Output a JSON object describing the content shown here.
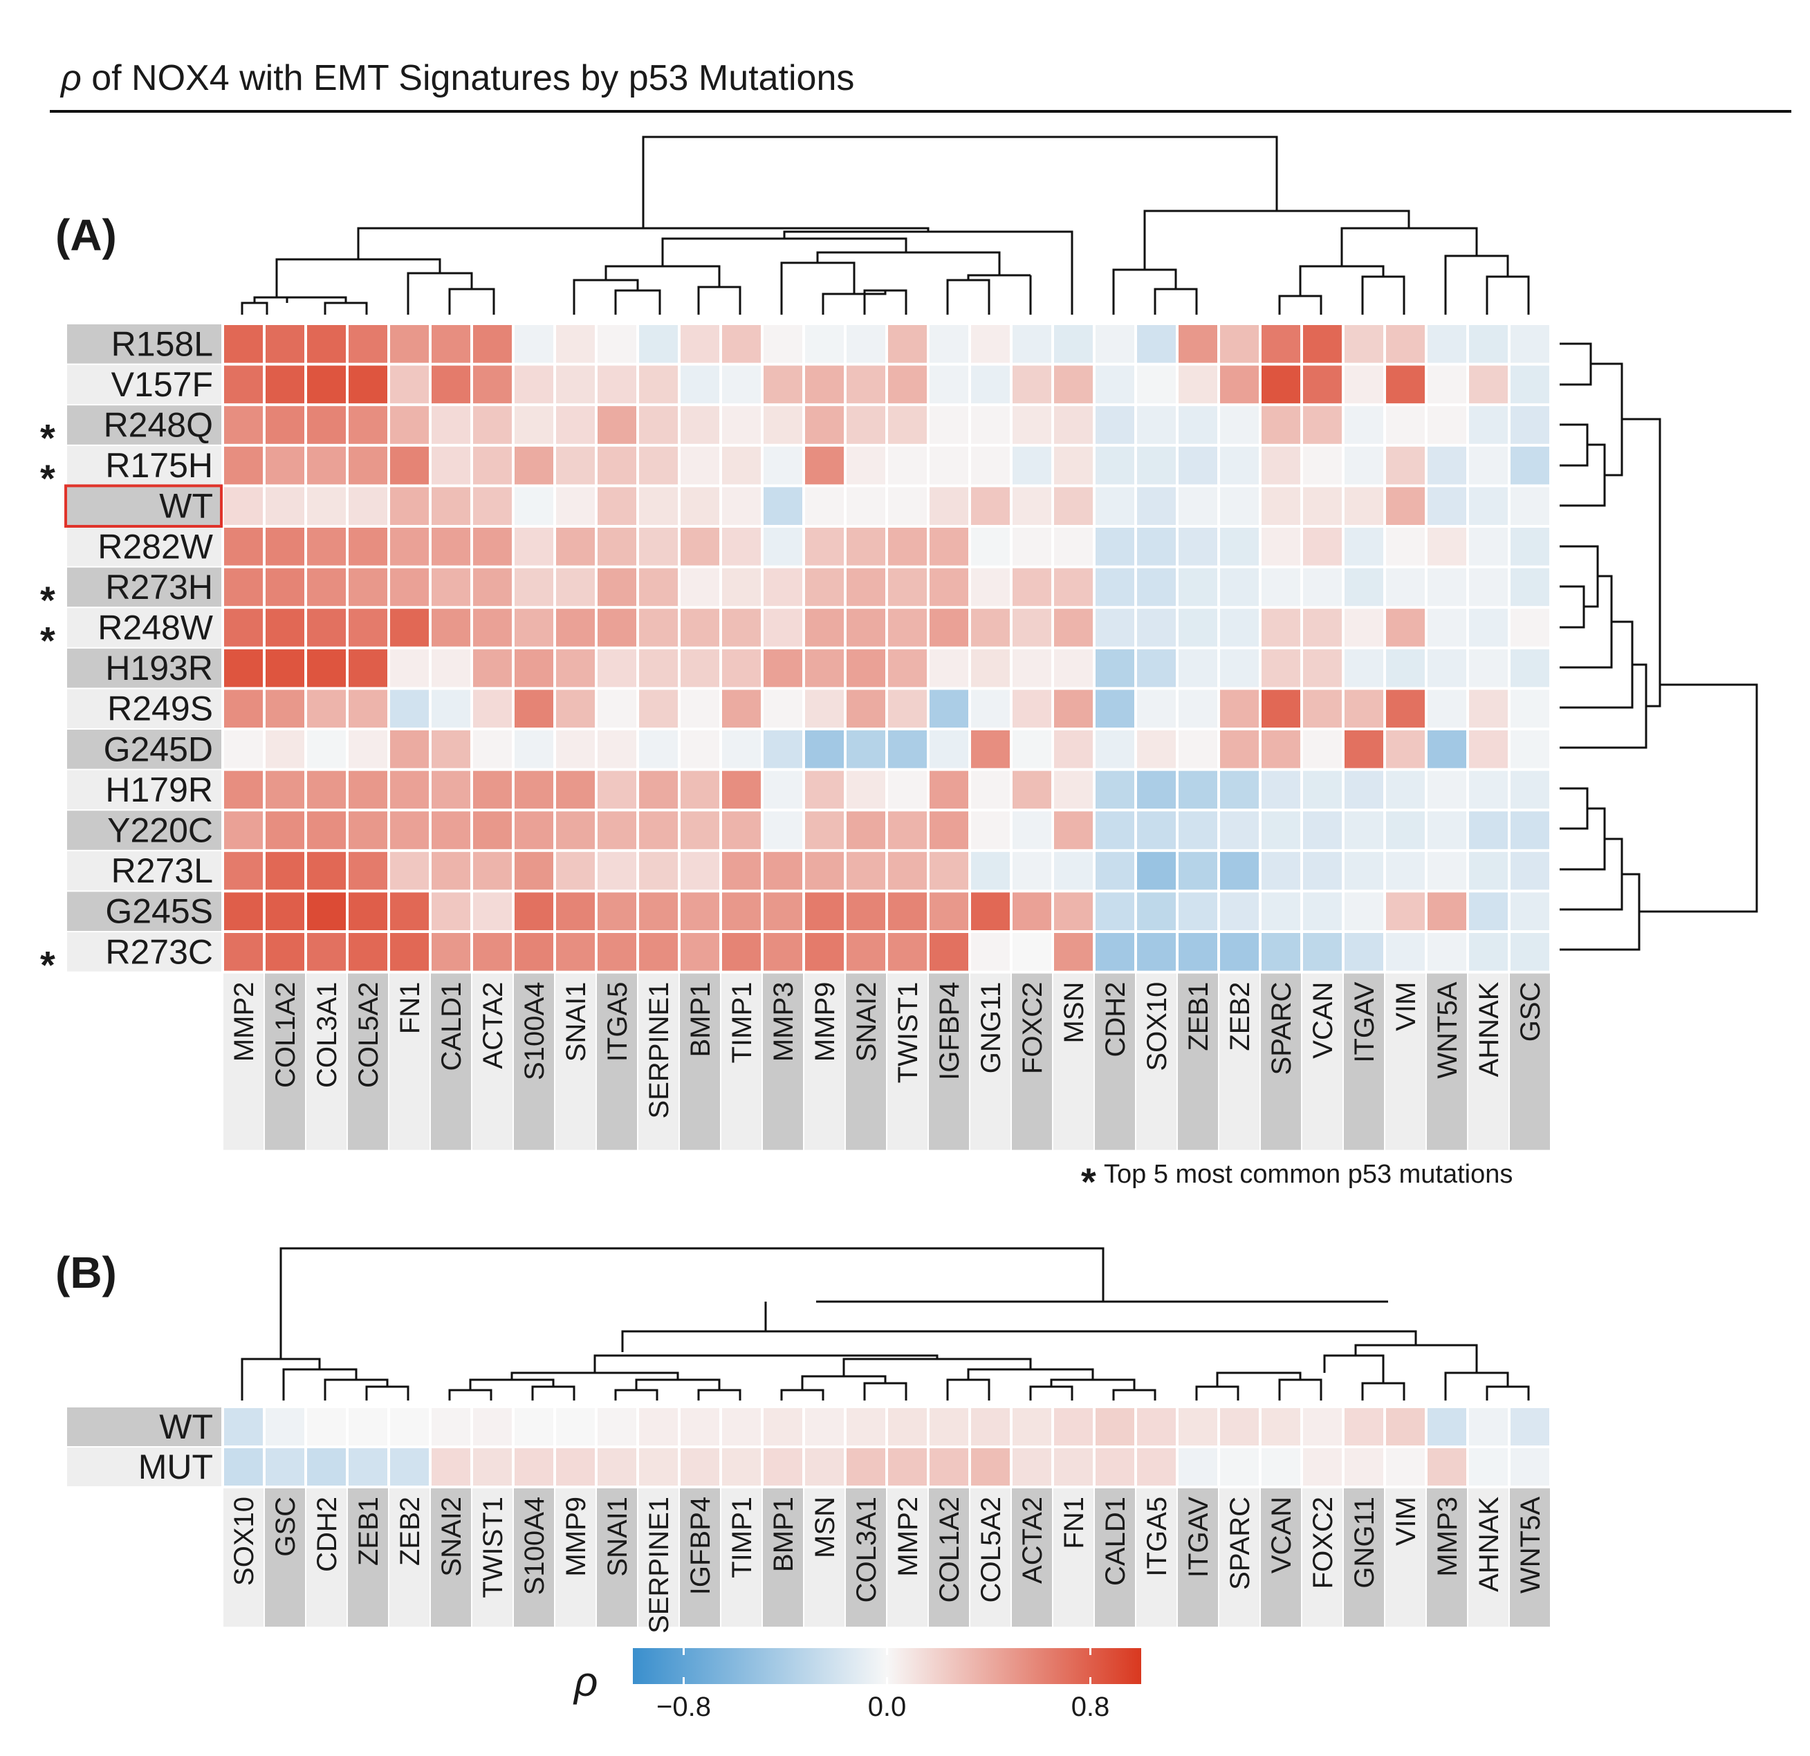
{
  "title": {
    "rho": "ρ",
    "rest": " of NOX4 with EMT Signatures by p53 Mutations"
  },
  "chart_data": [
    {
      "type": "heatmap",
      "panel": "(A)",
      "rows": [
        "R158L",
        "V157F",
        "R248Q",
        "R175H",
        "WT",
        "R282W",
        "R273H",
        "R248W",
        "H193R",
        "R249S",
        "G245D",
        "H179R",
        "Y220C",
        "R273L",
        "G245S",
        "R273C"
      ],
      "starred_rows": [
        "R248Q",
        "R175H",
        "R273H",
        "R248W",
        "R273C"
      ],
      "highlighted_row": "WT",
      "columns": [
        "MMP2",
        "COL1A2",
        "COL3A1",
        "COL5A2",
        "FN1",
        "CALD1",
        "ACTA2",
        "S100A4",
        "SNAI1",
        "ITGA5",
        "SERPINE1",
        "BMP1",
        "TIMP1",
        "MMP3",
        "MMP9",
        "SNAI2",
        "TWIST1",
        "IGFBP4",
        "GNG11",
        "FOXC2",
        "MSN",
        "CDH2",
        "SOX10",
        "ZEB1",
        "ZEB2",
        "SPARC",
        "VCAN",
        "ITGAV",
        "VIM",
        "WNT5A",
        "AHNAK",
        "GSC"
      ],
      "values": [
        [
          0.75,
          0.72,
          0.75,
          0.65,
          0.5,
          0.55,
          0.6,
          -0.05,
          0.08,
          0.02,
          -0.12,
          0.15,
          0.25,
          0.02,
          -0.03,
          -0.05,
          0.3,
          -0.05,
          0.05,
          -0.08,
          -0.12,
          -0.05,
          -0.2,
          0.5,
          0.3,
          0.65,
          0.75,
          0.2,
          0.25,
          -0.1,
          -0.12,
          -0.08
        ],
        [
          0.7,
          0.8,
          0.85,
          0.85,
          0.25,
          0.65,
          0.55,
          0.15,
          0.12,
          0.15,
          0.18,
          -0.08,
          -0.05,
          0.3,
          0.35,
          0.28,
          0.35,
          -0.05,
          -0.08,
          0.2,
          0.3,
          -0.08,
          -0.02,
          0.1,
          0.45,
          0.85,
          0.7,
          0.05,
          0.75,
          0.02,
          0.2,
          -0.12
        ],
        [
          0.55,
          0.6,
          0.6,
          0.55,
          0.35,
          0.15,
          0.25,
          0.1,
          0.15,
          0.4,
          0.2,
          0.12,
          0.05,
          0.1,
          0.35,
          0.2,
          0.18,
          0.02,
          0.02,
          0.08,
          0.12,
          -0.15,
          -0.08,
          -0.1,
          -0.05,
          0.3,
          0.28,
          -0.05,
          0.02,
          0.02,
          -0.1,
          -0.15
        ],
        [
          0.55,
          0.45,
          0.45,
          0.5,
          0.6,
          0.15,
          0.25,
          0.4,
          0.2,
          0.25,
          0.2,
          0.05,
          0.1,
          -0.05,
          0.55,
          0.05,
          0.02,
          0.02,
          0.02,
          -0.1,
          0.1,
          -0.12,
          -0.12,
          -0.15,
          -0.08,
          0.12,
          0.02,
          -0.05,
          0.2,
          -0.15,
          -0.05,
          -0.25
        ],
        [
          0.15,
          0.12,
          0.1,
          0.12,
          0.35,
          0.3,
          0.25,
          -0.03,
          0.05,
          0.25,
          0.1,
          0.1,
          0.05,
          -0.25,
          0.02,
          0.02,
          0.02,
          0.12,
          0.25,
          0.08,
          0.2,
          -0.08,
          -0.15,
          -0.05,
          -0.05,
          0.1,
          0.1,
          0.1,
          0.35,
          -0.15,
          -0.1,
          -0.05
        ],
        [
          0.6,
          0.6,
          0.55,
          0.55,
          0.45,
          0.45,
          0.45,
          0.15,
          0.35,
          0.3,
          0.2,
          0.3,
          0.15,
          -0.08,
          0.25,
          0.3,
          0.35,
          0.35,
          -0.02,
          0.02,
          0.02,
          -0.2,
          -0.2,
          -0.15,
          -0.12,
          0.05,
          0.15,
          -0.1,
          0.02,
          0.08,
          -0.05,
          -0.12
        ],
        [
          0.6,
          0.6,
          0.55,
          0.5,
          0.45,
          0.35,
          0.4,
          0.2,
          0.2,
          0.4,
          0.3,
          0.05,
          0.1,
          0.15,
          0.3,
          0.35,
          0.3,
          0.35,
          0.05,
          0.25,
          0.25,
          -0.2,
          -0.2,
          -0.12,
          -0.1,
          -0.05,
          -0.05,
          -0.12,
          -0.05,
          -0.05,
          -0.05,
          -0.12
        ],
        [
          0.7,
          0.75,
          0.7,
          0.65,
          0.75,
          0.5,
          0.45,
          0.35,
          0.45,
          0.45,
          0.3,
          0.3,
          0.3,
          0.15,
          0.4,
          0.4,
          0.35,
          0.45,
          0.3,
          0.2,
          0.35,
          -0.15,
          -0.15,
          -0.12,
          -0.1,
          0.2,
          0.2,
          0.05,
          0.35,
          -0.05,
          -0.08,
          0.02
        ],
        [
          0.85,
          0.85,
          0.85,
          0.8,
          0.05,
          0.05,
          0.4,
          0.45,
          0.35,
          0.15,
          0.2,
          0.2,
          0.25,
          0.45,
          0.4,
          0.45,
          0.35,
          0.05,
          0.1,
          0.05,
          0.05,
          -0.35,
          -0.25,
          -0.08,
          -0.08,
          0.2,
          0.2,
          -0.08,
          -0.12,
          -0.08,
          -0.05,
          -0.12
        ],
        [
          0.55,
          0.5,
          0.35,
          0.35,
          -0.2,
          -0.08,
          0.15,
          0.6,
          0.3,
          0.02,
          0.2,
          0.02,
          0.4,
          0.02,
          0.12,
          0.4,
          0.2,
          -0.4,
          -0.05,
          0.15,
          0.4,
          -0.4,
          -0.05,
          -0.05,
          0.35,
          0.75,
          0.3,
          0.3,
          0.7,
          -0.05,
          0.12,
          -0.03
        ],
        [
          0.02,
          0.08,
          -0.02,
          0.05,
          0.4,
          0.3,
          0.02,
          -0.05,
          0.05,
          0.05,
          -0.05,
          0.02,
          -0.05,
          -0.2,
          -0.45,
          -0.35,
          -0.4,
          -0.08,
          0.55,
          -0.02,
          0.15,
          -0.08,
          0.08,
          0.02,
          0.35,
          0.35,
          0.02,
          0.7,
          0.25,
          -0.45,
          0.15,
          -0.03
        ],
        [
          0.55,
          0.5,
          0.5,
          0.5,
          0.45,
          0.4,
          0.5,
          0.5,
          0.5,
          0.25,
          0.4,
          0.3,
          0.55,
          -0.05,
          0.25,
          0.08,
          0.02,
          0.45,
          0.02,
          0.3,
          0.08,
          -0.3,
          -0.4,
          -0.35,
          -0.3,
          -0.15,
          -0.12,
          -0.15,
          -0.1,
          -0.05,
          -0.08,
          -0.1
        ],
        [
          0.45,
          0.55,
          0.55,
          0.5,
          0.45,
          0.45,
          0.5,
          0.45,
          0.4,
          0.35,
          0.35,
          0.3,
          0.35,
          -0.05,
          0.3,
          0.4,
          0.35,
          0.45,
          0.02,
          -0.05,
          0.35,
          -0.25,
          -0.25,
          -0.2,
          -0.15,
          -0.12,
          -0.15,
          -0.1,
          -0.12,
          -0.08,
          -0.2,
          -0.2
        ],
        [
          0.65,
          0.75,
          0.75,
          0.65,
          0.25,
          0.35,
          0.35,
          0.5,
          0.25,
          0.15,
          0.2,
          0.15,
          0.45,
          0.45,
          0.4,
          0.35,
          0.35,
          0.3,
          -0.12,
          -0.05,
          -0.08,
          -0.25,
          -0.5,
          -0.35,
          -0.45,
          -0.15,
          -0.15,
          -0.1,
          -0.08,
          -0.05,
          -0.12,
          -0.15
        ],
        [
          0.8,
          0.8,
          0.9,
          0.8,
          0.75,
          0.25,
          0.15,
          0.7,
          0.6,
          0.5,
          0.5,
          0.45,
          0.5,
          0.5,
          0.65,
          0.6,
          0.6,
          0.5,
          0.75,
          0.45,
          0.35,
          -0.25,
          -0.3,
          -0.2,
          -0.15,
          -0.1,
          -0.1,
          -0.05,
          0.25,
          0.4,
          -0.2,
          -0.1
        ],
        [
          0.7,
          0.75,
          0.7,
          0.75,
          0.75,
          0.5,
          0.55,
          0.6,
          0.55,
          0.55,
          0.55,
          0.45,
          0.6,
          0.55,
          0.65,
          0.55,
          0.55,
          0.7,
          0.02,
          0.0,
          0.5,
          -0.45,
          -0.45,
          -0.45,
          -0.45,
          -0.35,
          -0.3,
          -0.2,
          -0.08,
          -0.05,
          -0.12,
          -0.12
        ]
      ]
    },
    {
      "type": "heatmap",
      "panel": "(B)",
      "rows": [
        "WT",
        "MUT"
      ],
      "columns": [
        "SOX10",
        "GSC",
        "CDH2",
        "ZEB1",
        "ZEB2",
        "SNAI2",
        "TWIST1",
        "S100A4",
        "MMP9",
        "SNAI1",
        "SERPINE1",
        "IGFBP4",
        "TIMP1",
        "BMP1",
        "MSN",
        "COL3A1",
        "MMP2",
        "COL1A2",
        "COL5A2",
        "ACTA2",
        "FN1",
        "CALD1",
        "ITGA5",
        "ITGAV",
        "SPARC",
        "VCAN",
        "FOXC2",
        "GNG11",
        "VIM",
        "MMP3",
        "AHNAK",
        "WNT5A"
      ],
      "values": [
        [
          -0.2,
          -0.05,
          0.0,
          0.0,
          0.0,
          0.02,
          0.03,
          0.0,
          0.0,
          0.02,
          0.05,
          0.05,
          0.05,
          0.08,
          0.05,
          0.08,
          0.1,
          0.1,
          0.12,
          0.1,
          0.15,
          0.2,
          0.15,
          0.1,
          0.12,
          0.1,
          0.05,
          0.15,
          0.2,
          -0.2,
          -0.05,
          -0.15
        ],
        [
          -0.25,
          -0.2,
          -0.25,
          -0.2,
          -0.2,
          0.15,
          0.12,
          0.15,
          0.15,
          0.12,
          0.1,
          0.12,
          0.1,
          0.15,
          0.12,
          0.25,
          0.25,
          0.25,
          0.3,
          0.12,
          0.12,
          0.15,
          0.15,
          -0.05,
          -0.02,
          -0.02,
          0.05,
          0.05,
          0.02,
          0.2,
          -0.03,
          -0.05
        ]
      ]
    }
  ],
  "colorbar": {
    "label": "ρ",
    "min": -1,
    "max": 1,
    "ticks": [
      "−0.8",
      "0.0",
      "0.8"
    ],
    "tick_values": [
      -0.8,
      0.0,
      0.8
    ],
    "low_color": "#3a8fcd",
    "mid_color": "#f7f7f7",
    "high_color": "#d9381f"
  },
  "footnote": {
    "star": "*",
    "text": "Top 5 most common p53 mutations"
  },
  "panels": {
    "a": "(A)",
    "b": "(B)"
  },
  "colors": {
    "label_band_dark": "#c9c9c9",
    "label_band_light": "#eeeeee",
    "highlight": "#e0342b"
  }
}
